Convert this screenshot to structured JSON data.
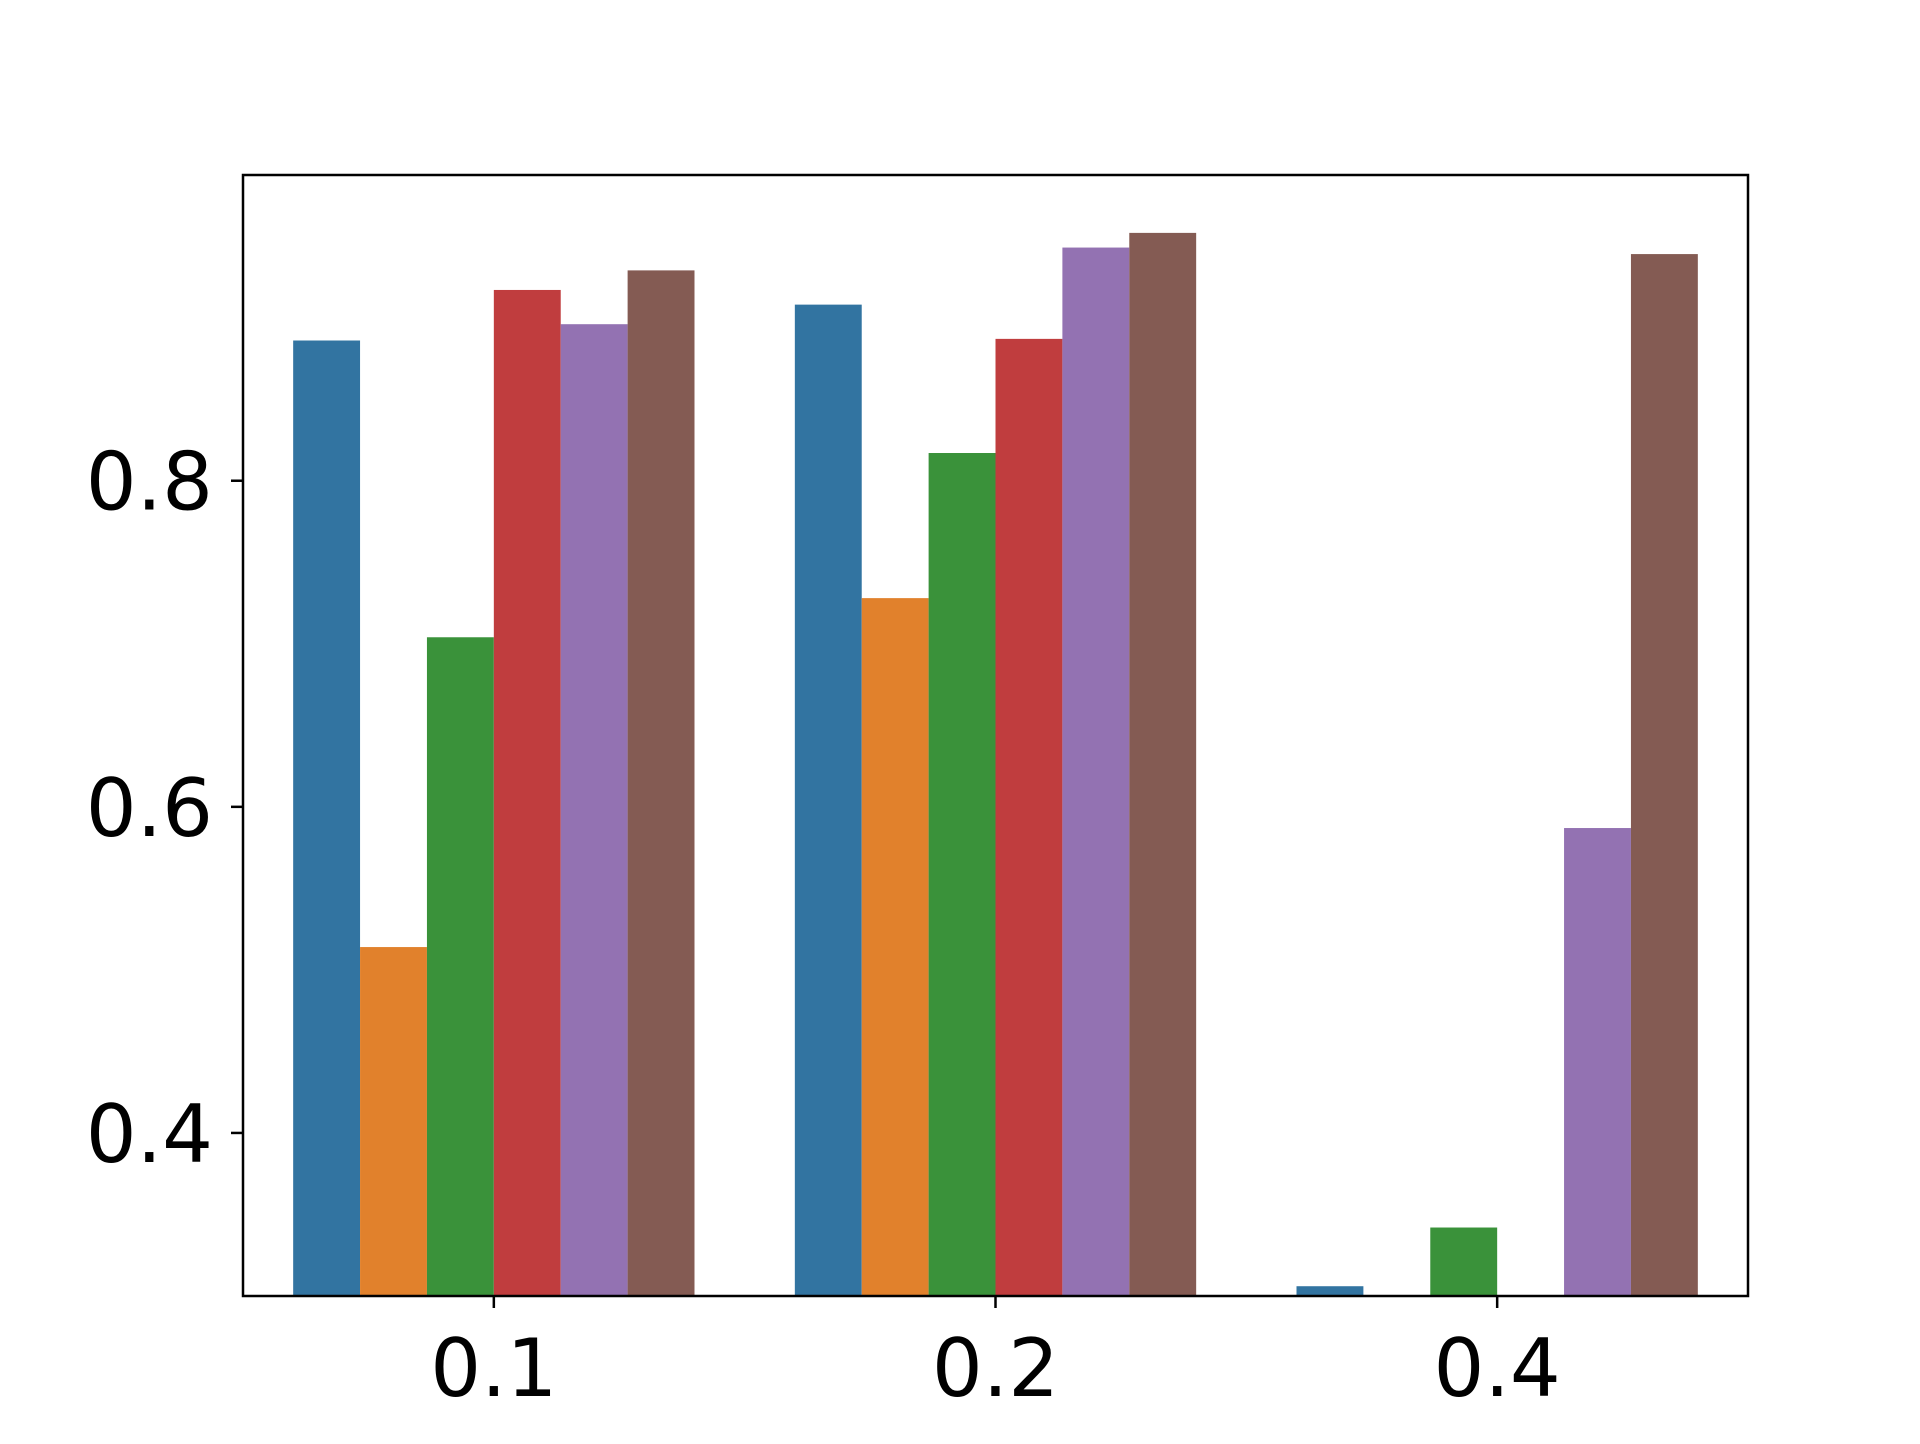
{
  "chart_data": {
    "type": "bar",
    "title": "",
    "xlabel": "",
    "ylabel": "",
    "categories": [
      "0.1",
      "0.2",
      "0.4"
    ],
    "ylim": [
      0.3,
      0.9875
    ],
    "yticks": [
      "0.4",
      "0.6",
      "0.8"
    ],
    "grid": false,
    "legend": "none",
    "series": [
      {
        "color": "#3274a1",
        "values": [
          0.886,
          0.908,
          0.306
        ]
      },
      {
        "color": "#e1812c",
        "values": [
          0.514,
          0.728,
          null
        ]
      },
      {
        "color": "#3a923a",
        "values": [
          0.704,
          0.817,
          0.342
        ]
      },
      {
        "color": "#c03d3e",
        "values": [
          0.917,
          0.887,
          null
        ]
      },
      {
        "color": "#9372b2",
        "values": [
          0.896,
          0.943,
          0.587
        ]
      },
      {
        "color": "#845b53",
        "values": [
          0.929,
          0.952,
          0.939
        ]
      }
    ]
  }
}
